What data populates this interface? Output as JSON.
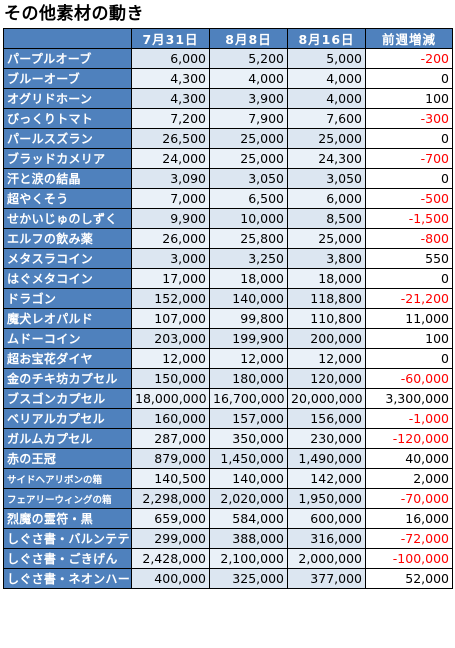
{
  "title": "その他素材の動き",
  "headers": {
    "name": "",
    "d1": "7月31日",
    "d2": "8月8日",
    "d3": "8月16日",
    "diff": "前週増減"
  },
  "rows": [
    {
      "name": "パープルオーブ",
      "d1": "6,000",
      "d2": "5,200",
      "d3": "5,000",
      "diff": "-200",
      "negative": true
    },
    {
      "name": "ブルーオーブ",
      "d1": "4,300",
      "d2": "4,000",
      "d3": "4,000",
      "diff": "0",
      "negative": false
    },
    {
      "name": "オグリドホーン",
      "d1": "4,300",
      "d2": "3,900",
      "d3": "4,000",
      "diff": "100",
      "negative": false
    },
    {
      "name": "びっくりトマト",
      "d1": "7,200",
      "d2": "7,900",
      "d3": "7,600",
      "diff": "-300",
      "negative": true
    },
    {
      "name": "パールスズラン",
      "d1": "26,500",
      "d2": "25,000",
      "d3": "25,000",
      "diff": "0",
      "negative": false
    },
    {
      "name": "ブラッドカメリア",
      "d1": "24,000",
      "d2": "25,000",
      "d3": "24,300",
      "diff": "-700",
      "negative": true
    },
    {
      "name": "汗と涙の結晶",
      "d1": "3,090",
      "d2": "3,050",
      "d3": "3,050",
      "diff": "0",
      "negative": false
    },
    {
      "name": "超やくそう",
      "d1": "7,000",
      "d2": "6,500",
      "d3": "6,000",
      "diff": "-500",
      "negative": true
    },
    {
      "name": "せかいじゅのしずく",
      "d1": "9,900",
      "d2": "10,000",
      "d3": "8,500",
      "diff": "-1,500",
      "negative": true
    },
    {
      "name": "エルフの飲み薬",
      "d1": "26,000",
      "d2": "25,800",
      "d3": "25,000",
      "diff": "-800",
      "negative": true
    },
    {
      "name": "メタスラコイン",
      "d1": "3,000",
      "d2": "3,250",
      "d3": "3,800",
      "diff": "550",
      "negative": false
    },
    {
      "name": "はぐメタコイン",
      "d1": "17,000",
      "d2": "18,000",
      "d3": "18,000",
      "diff": "0",
      "negative": false
    },
    {
      "name": "ドラゴン",
      "d1": "152,000",
      "d2": "140,000",
      "d3": "118,800",
      "diff": "-21,200",
      "negative": true
    },
    {
      "name": "魔犬レオパルド",
      "d1": "107,000",
      "d2": "99,800",
      "d3": "110,800",
      "diff": "11,000",
      "negative": false
    },
    {
      "name": "ムドーコイン",
      "d1": "203,000",
      "d2": "199,900",
      "d3": "200,000",
      "diff": "100",
      "negative": false
    },
    {
      "name": "超お宝花ダイヤ",
      "d1": "12,000",
      "d2": "12,000",
      "d3": "12,000",
      "diff": "0",
      "negative": false
    },
    {
      "name": "金のチキ坊カプセル",
      "d1": "150,000",
      "d2": "180,000",
      "d3": "120,000",
      "diff": "-60,000",
      "negative": true
    },
    {
      "name": "ブスゴンカプセル",
      "d1": "18,000,000",
      "d2": "16,700,000",
      "d3": "20,000,000",
      "diff": "3,300,000",
      "negative": false
    },
    {
      "name": "ベリアルカプセル",
      "d1": "160,000",
      "d2": "157,000",
      "d3": "156,000",
      "diff": "-1,000",
      "negative": true
    },
    {
      "name": "ガルムカプセル",
      "d1": "287,000",
      "d2": "350,000",
      "d3": "230,000",
      "diff": "-120,000",
      "negative": true
    },
    {
      "name": "赤の王冠",
      "d1": "879,000",
      "d2": "1,450,000",
      "d3": "1,490,000",
      "diff": "40,000",
      "negative": false
    },
    {
      "name": "サイドヘアリボンの箱",
      "d1": "140,500",
      "d2": "140,000",
      "d3": "142,000",
      "diff": "2,000",
      "negative": false,
      "small": true
    },
    {
      "name": "フェアリーウィングの箱",
      "d1": "2,298,000",
      "d2": "2,020,000",
      "d3": "1,950,000",
      "diff": "-70,000",
      "negative": true,
      "small": true
    },
    {
      "name": "烈魔の霊符・黒",
      "d1": "659,000",
      "d2": "584,000",
      "d3": "600,000",
      "diff": "16,000",
      "negative": false
    },
    {
      "name": "しぐさ書・バルンテテ",
      "d1": "299,000",
      "d2": "388,000",
      "d3": "316,000",
      "diff": "-72,000",
      "negative": true
    },
    {
      "name": "しぐさ書・ごきげん",
      "d1": "2,428,000",
      "d2": "2,100,000",
      "d3": "2,000,000",
      "diff": "-100,000",
      "negative": true
    },
    {
      "name": "しぐさ書・ネオンハート",
      "d1": "400,000",
      "d2": "325,000",
      "d3": "377,000",
      "diff": "52,000",
      "negative": false
    }
  ]
}
